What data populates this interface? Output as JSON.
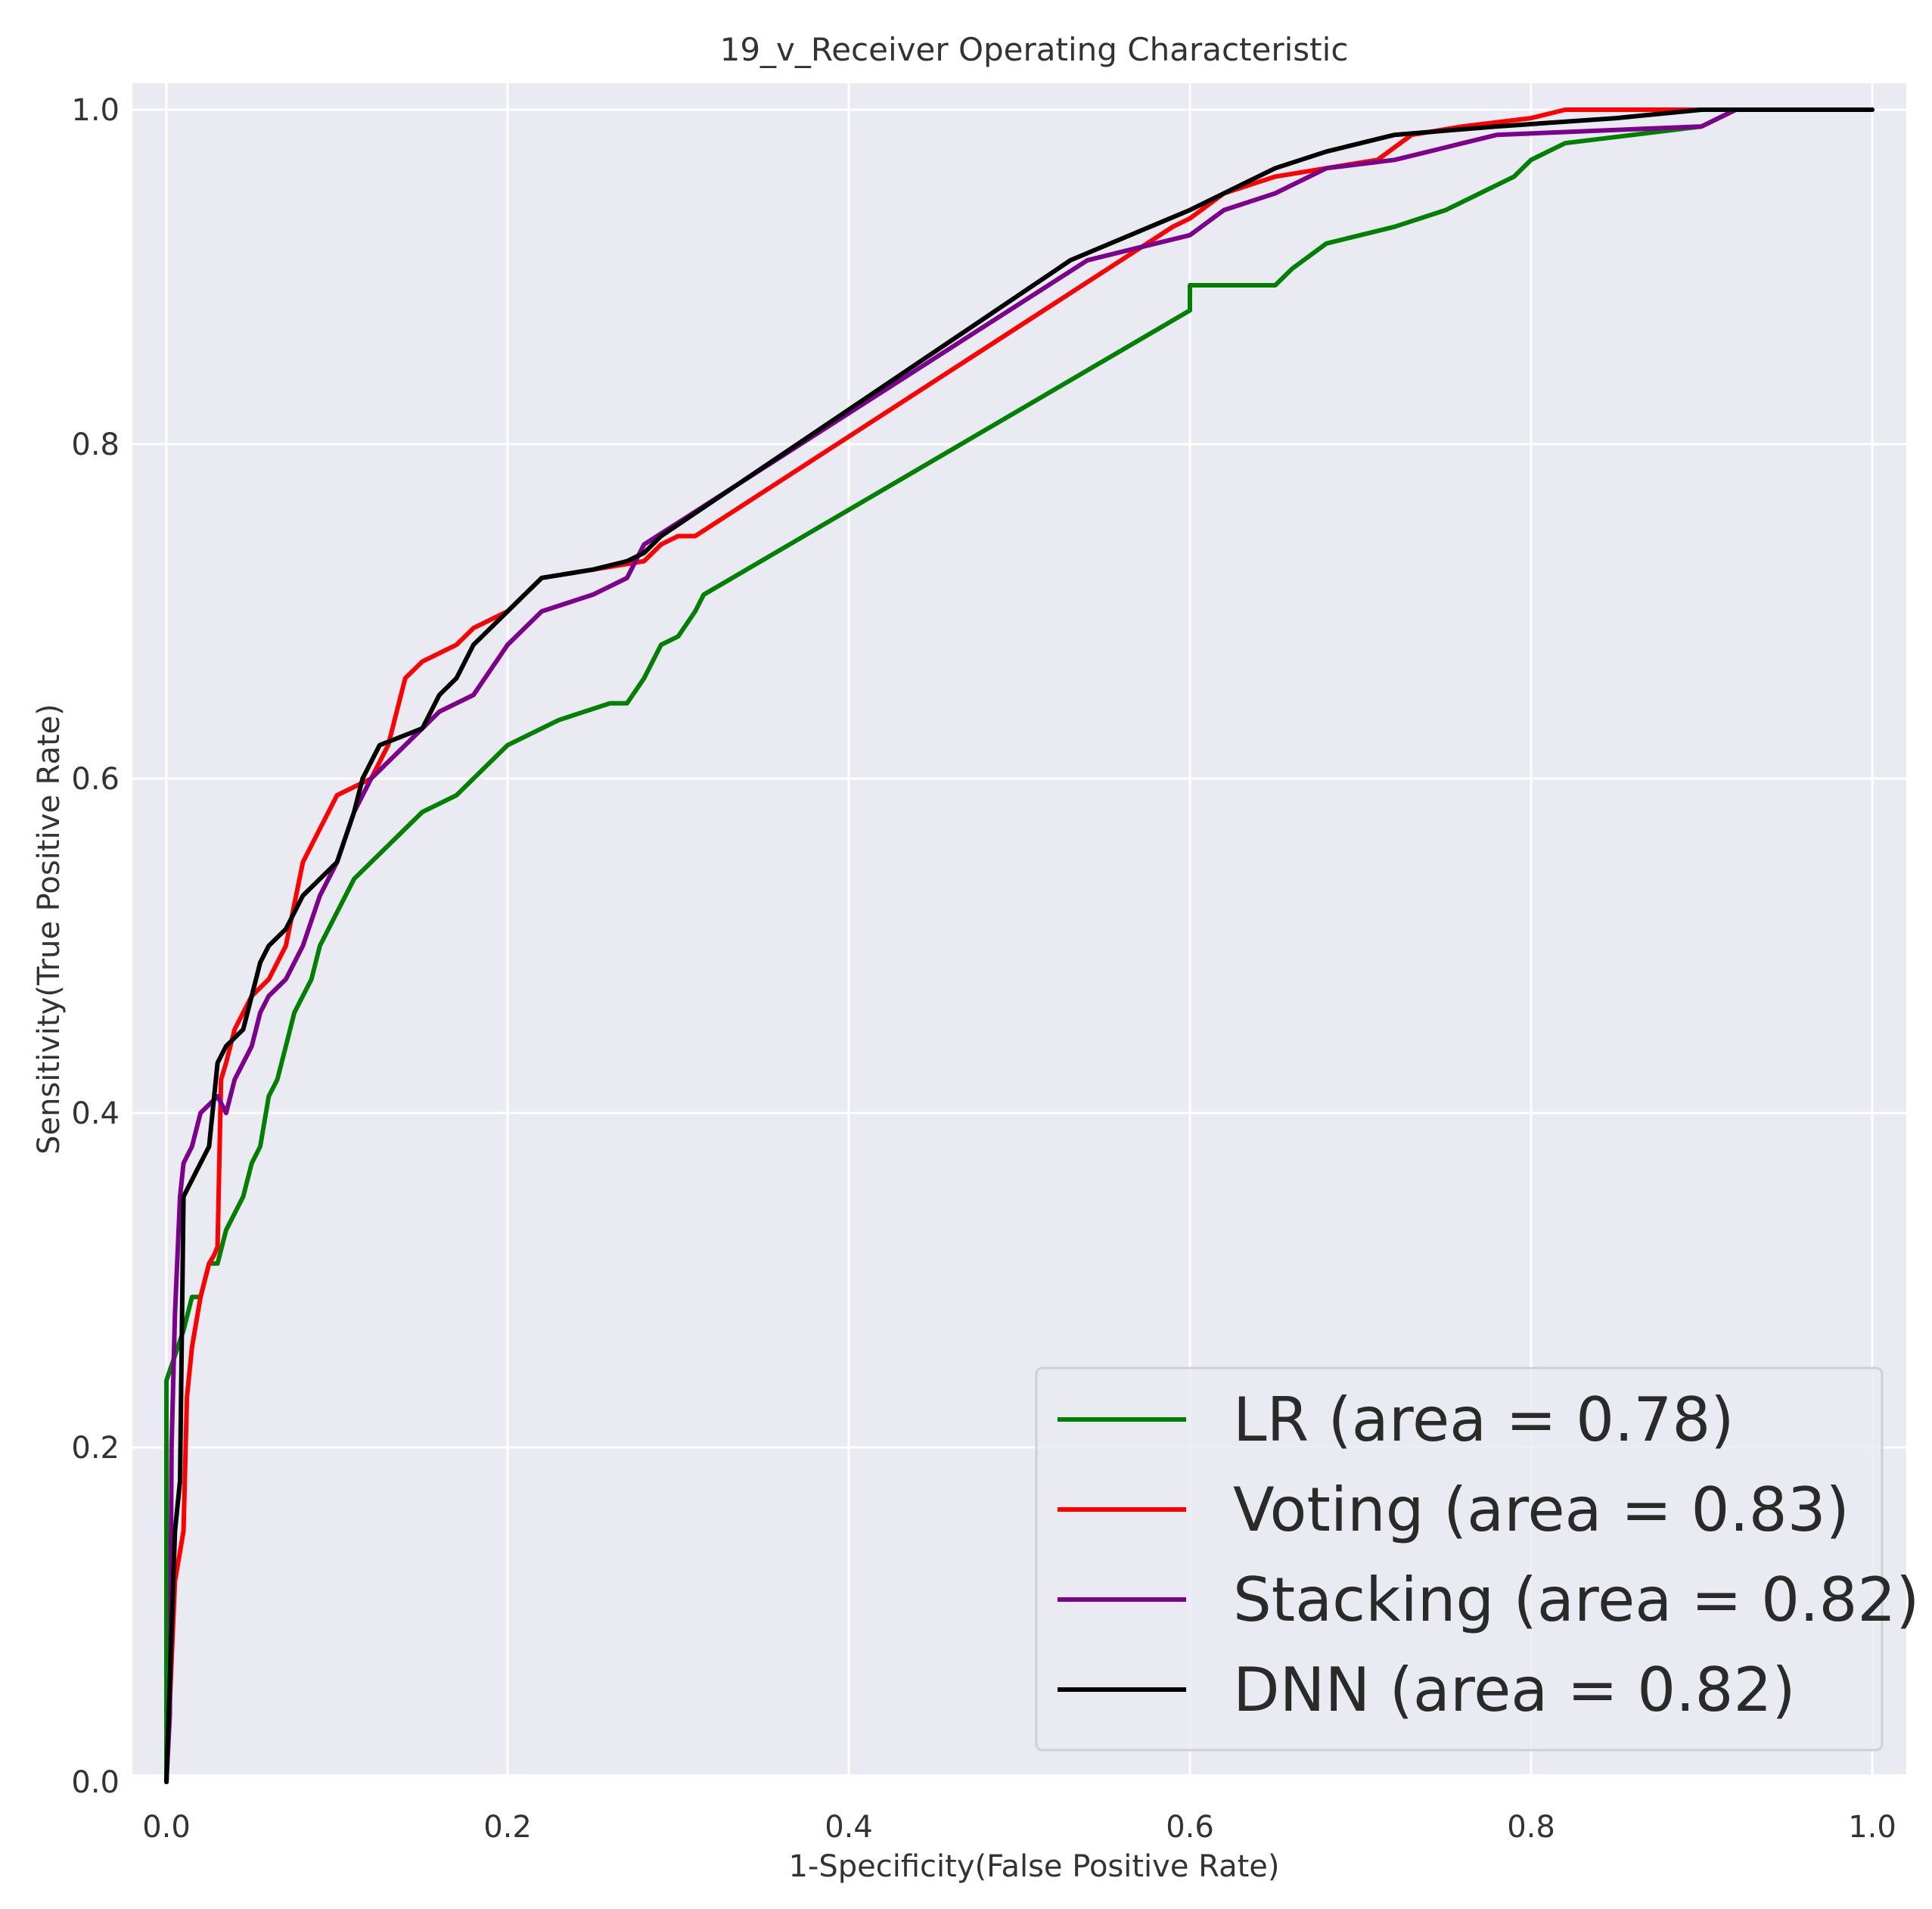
{
  "chart_data": {
    "type": "line",
    "title": "19_v_Receiver Operating Characteristic",
    "xlabel": "1-Specificity(False Positive Rate)",
    "ylabel": "Sensitivity(True Positive Rate)",
    "xlim": [
      0.0,
      1.0
    ],
    "ylim": [
      0.0,
      1.0
    ],
    "grid": true,
    "legend_position": "lower-right",
    "colors": {
      "plot_background": "#eaeaf2",
      "grid": "#ffffff"
    },
    "x_ticks": [
      {
        "value": 0.0,
        "label": "0.0"
      },
      {
        "value": 0.2,
        "label": "0.2"
      },
      {
        "value": 0.4,
        "label": "0.4"
      },
      {
        "value": 0.6,
        "label": "0.6"
      },
      {
        "value": 0.8,
        "label": "0.8"
      },
      {
        "value": 1.0,
        "label": "1.0"
      }
    ],
    "y_ticks": [
      {
        "value": 0.0,
        "label": "0.0"
      },
      {
        "value": 0.2,
        "label": "0.2"
      },
      {
        "value": 0.4,
        "label": "0.4"
      },
      {
        "value": 0.6,
        "label": "0.6"
      },
      {
        "value": 0.8,
        "label": "0.8"
      },
      {
        "value": 1.0,
        "label": "1.0"
      }
    ],
    "series": [
      {
        "name": "LR",
        "label": "LR (area = 0.78)",
        "color": "#008000",
        "points": [
          [
            0,
            0
          ],
          [
            0,
            0.24
          ],
          [
            0.01,
            0.27
          ],
          [
            0.015,
            0.29
          ],
          [
            0.02,
            0.29
          ],
          [
            0.025,
            0.31
          ],
          [
            0.03,
            0.31
          ],
          [
            0.035,
            0.33
          ],
          [
            0.04,
            0.34
          ],
          [
            0.045,
            0.35
          ],
          [
            0.05,
            0.37
          ],
          [
            0.055,
            0.38
          ],
          [
            0.06,
            0.41
          ],
          [
            0.065,
            0.42
          ],
          [
            0.07,
            0.44
          ],
          [
            0.075,
            0.46
          ],
          [
            0.08,
            0.47
          ],
          [
            0.085,
            0.48
          ],
          [
            0.09,
            0.5
          ],
          [
            0.1,
            0.52
          ],
          [
            0.11,
            0.54
          ],
          [
            0.12,
            0.55
          ],
          [
            0.13,
            0.56
          ],
          [
            0.14,
            0.57
          ],
          [
            0.15,
            0.58
          ],
          [
            0.17,
            0.59
          ],
          [
            0.18,
            0.6
          ],
          [
            0.2,
            0.62
          ],
          [
            0.23,
            0.635
          ],
          [
            0.26,
            0.645
          ],
          [
            0.27,
            0.645
          ],
          [
            0.28,
            0.66
          ],
          [
            0.29,
            0.68
          ],
          [
            0.3,
            0.685
          ],
          [
            0.31,
            0.7
          ],
          [
            0.315,
            0.71
          ],
          [
            0.6,
            0.88
          ],
          [
            0.6,
            0.895
          ],
          [
            0.65,
            0.895
          ],
          [
            0.66,
            0.905
          ],
          [
            0.68,
            0.92
          ],
          [
            0.72,
            0.93
          ],
          [
            0.75,
            0.94
          ],
          [
            0.77,
            0.95
          ],
          [
            0.79,
            0.96
          ],
          [
            0.8,
            0.97
          ],
          [
            0.82,
            0.98
          ],
          [
            0.86,
            0.985
          ],
          [
            0.9,
            0.99
          ],
          [
            0.92,
            1.0
          ],
          [
            1.0,
            1.0
          ]
        ]
      },
      {
        "name": "Voting",
        "label": "Voting (area = 0.83)",
        "color": "#ff0000",
        "points": [
          [
            0,
            0
          ],
          [
            0.005,
            0.12
          ],
          [
            0.01,
            0.15
          ],
          [
            0.012,
            0.23
          ],
          [
            0.015,
            0.26
          ],
          [
            0.02,
            0.29
          ],
          [
            0.025,
            0.31
          ],
          [
            0.028,
            0.315
          ],
          [
            0.03,
            0.32
          ],
          [
            0.032,
            0.42
          ],
          [
            0.035,
            0.43
          ],
          [
            0.04,
            0.45
          ],
          [
            0.05,
            0.47
          ],
          [
            0.06,
            0.48
          ],
          [
            0.065,
            0.49
          ],
          [
            0.07,
            0.5
          ],
          [
            0.08,
            0.55
          ],
          [
            0.09,
            0.57
          ],
          [
            0.095,
            0.58
          ],
          [
            0.1,
            0.59
          ],
          [
            0.12,
            0.6
          ],
          [
            0.13,
            0.62
          ],
          [
            0.135,
            0.64
          ],
          [
            0.14,
            0.66
          ],
          [
            0.15,
            0.67
          ],
          [
            0.17,
            0.68
          ],
          [
            0.18,
            0.69
          ],
          [
            0.2,
            0.7
          ],
          [
            0.22,
            0.72
          ],
          [
            0.25,
            0.725
          ],
          [
            0.28,
            0.73
          ],
          [
            0.29,
            0.74
          ],
          [
            0.3,
            0.745
          ],
          [
            0.31,
            0.745
          ],
          [
            0.59,
            0.93
          ],
          [
            0.6,
            0.935
          ],
          [
            0.62,
            0.95
          ],
          [
            0.65,
            0.96
          ],
          [
            0.68,
            0.965
          ],
          [
            0.71,
            0.97
          ],
          [
            0.73,
            0.985
          ],
          [
            0.76,
            0.99
          ],
          [
            0.8,
            0.995
          ],
          [
            0.82,
            1.0
          ],
          [
            0.9,
            1.0
          ],
          [
            1.0,
            1.0
          ]
        ]
      },
      {
        "name": "Stacking",
        "label": "Stacking (area = 0.82)",
        "color": "#7b008b",
        "points": [
          [
            0,
            0
          ],
          [
            0.002,
            0.04
          ],
          [
            0.003,
            0.2
          ],
          [
            0.005,
            0.28
          ],
          [
            0.008,
            0.35
          ],
          [
            0.01,
            0.37
          ],
          [
            0.015,
            0.38
          ],
          [
            0.02,
            0.4
          ],
          [
            0.03,
            0.41
          ],
          [
            0.035,
            0.4
          ],
          [
            0.04,
            0.42
          ],
          [
            0.05,
            0.44
          ],
          [
            0.055,
            0.46
          ],
          [
            0.06,
            0.47
          ],
          [
            0.07,
            0.48
          ],
          [
            0.08,
            0.5
          ],
          [
            0.09,
            0.53
          ],
          [
            0.1,
            0.55
          ],
          [
            0.11,
            0.58
          ],
          [
            0.12,
            0.6
          ],
          [
            0.13,
            0.61
          ],
          [
            0.14,
            0.62
          ],
          [
            0.16,
            0.64
          ],
          [
            0.18,
            0.65
          ],
          [
            0.19,
            0.665
          ],
          [
            0.2,
            0.68
          ],
          [
            0.22,
            0.7
          ],
          [
            0.25,
            0.71
          ],
          [
            0.26,
            0.715
          ],
          [
            0.27,
            0.72
          ],
          [
            0.28,
            0.74
          ],
          [
            0.54,
            0.91
          ],
          [
            0.56,
            0.915
          ],
          [
            0.58,
            0.92
          ],
          [
            0.6,
            0.925
          ],
          [
            0.62,
            0.94
          ],
          [
            0.65,
            0.95
          ],
          [
            0.68,
            0.965
          ],
          [
            0.72,
            0.97
          ],
          [
            0.74,
            0.975
          ],
          [
            0.76,
            0.98
          ],
          [
            0.78,
            0.985
          ],
          [
            0.9,
            0.99
          ],
          [
            0.92,
            1.0
          ],
          [
            1.0,
            1.0
          ]
        ]
      },
      {
        "name": "DNN",
        "label": "DNN (area = 0.82)",
        "color": "#000000",
        "points": [
          [
            0,
            0
          ],
          [
            0.005,
            0.15
          ],
          [
            0.008,
            0.18
          ],
          [
            0.01,
            0.35
          ],
          [
            0.015,
            0.36
          ],
          [
            0.02,
            0.37
          ],
          [
            0.025,
            0.38
          ],
          [
            0.03,
            0.43
          ],
          [
            0.035,
            0.44
          ],
          [
            0.045,
            0.45
          ],
          [
            0.05,
            0.47
          ],
          [
            0.055,
            0.49
          ],
          [
            0.06,
            0.5
          ],
          [
            0.07,
            0.51
          ],
          [
            0.08,
            0.53
          ],
          [
            0.09,
            0.54
          ],
          [
            0.1,
            0.55
          ],
          [
            0.11,
            0.58
          ],
          [
            0.115,
            0.6
          ],
          [
            0.12,
            0.61
          ],
          [
            0.125,
            0.62
          ],
          [
            0.15,
            0.63
          ],
          [
            0.16,
            0.65
          ],
          [
            0.17,
            0.66
          ],
          [
            0.18,
            0.68
          ],
          [
            0.2,
            0.7
          ],
          [
            0.21,
            0.71
          ],
          [
            0.22,
            0.72
          ],
          [
            0.25,
            0.725
          ],
          [
            0.27,
            0.73
          ],
          [
            0.28,
            0.735
          ],
          [
            0.29,
            0.745
          ],
          [
            0.53,
            0.91
          ],
          [
            0.6,
            0.94
          ],
          [
            0.62,
            0.95
          ],
          [
            0.65,
            0.965
          ],
          [
            0.68,
            0.975
          ],
          [
            0.72,
            0.985
          ],
          [
            0.78,
            0.99
          ],
          [
            0.85,
            0.995
          ],
          [
            0.9,
            1.0
          ],
          [
            1.0,
            1.0
          ]
        ]
      }
    ]
  }
}
